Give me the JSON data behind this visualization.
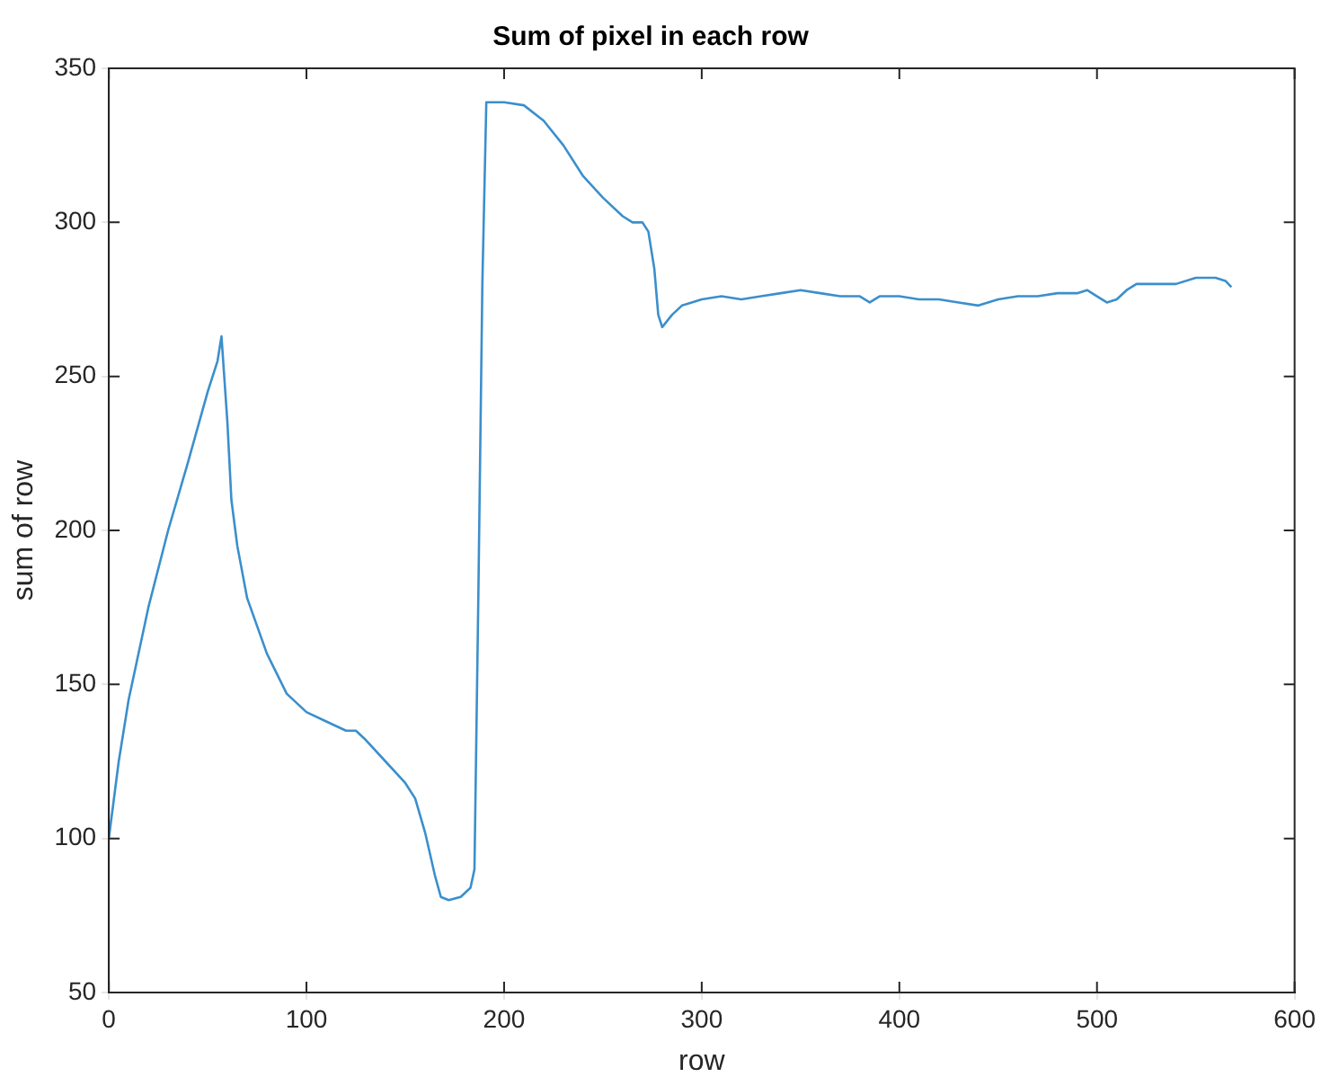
{
  "chart_data": {
    "type": "line",
    "title": "Sum of pixel in each row",
    "xlabel": "row",
    "ylabel": "sum of row",
    "x": [
      0,
      5,
      10,
      20,
      30,
      40,
      50,
      55,
      57,
      60,
      62,
      65,
      70,
      80,
      90,
      100,
      110,
      120,
      125,
      130,
      140,
      150,
      155,
      160,
      165,
      168,
      172,
      178,
      183,
      185,
      187,
      189,
      191,
      200,
      210,
      220,
      230,
      240,
      250,
      260,
      265,
      270,
      273,
      276,
      278,
      280,
      285,
      290,
      300,
      310,
      320,
      330,
      340,
      350,
      360,
      370,
      380,
      385,
      390,
      400,
      410,
      420,
      430,
      440,
      450,
      460,
      470,
      480,
      490,
      495,
      500,
      505,
      510,
      515,
      520,
      530,
      540,
      550,
      560,
      565,
      568
    ],
    "series": [
      {
        "color": "#3b8fcc",
        "values": [
          100,
          125,
          145,
          175,
          200,
          222,
          245,
          255,
          263,
          235,
          210,
          195,
          178,
          160,
          147,
          141,
          138,
          135,
          135,
          132,
          125,
          118,
          113,
          102,
          88,
          81,
          80,
          81,
          84,
          90,
          180,
          280,
          339,
          339,
          338,
          333,
          325,
          315,
          308,
          302,
          300,
          300,
          297,
          285,
          270,
          266,
          270,
          273,
          275,
          276,
          275,
          276,
          277,
          278,
          277,
          276,
          276,
          274,
          276,
          276,
          275,
          275,
          274,
          273,
          275,
          276,
          276,
          277,
          277,
          278,
          276,
          274,
          275,
          278,
          280,
          280,
          280,
          282,
          282,
          281,
          279
        ]
      }
    ],
    "xlim": [
      0,
      600
    ],
    "xticks": [
      0,
      100,
      200,
      300,
      400,
      500,
      600
    ],
    "ylim": [
      50,
      350
    ],
    "yticks": [
      50,
      100,
      150,
      200,
      250,
      300,
      350
    ],
    "grid": false,
    "legend": false,
    "marker": "none",
    "line_style": "solid"
  }
}
